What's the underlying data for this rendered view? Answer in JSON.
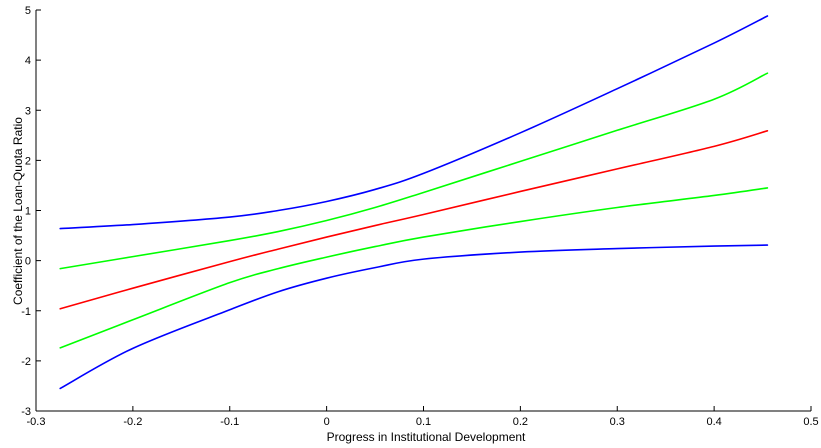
{
  "chart_data": {
    "type": "line",
    "title": "",
    "xlabel": "Progress in Institutional Development",
    "ylabel": "Coefficient of the Loan-Quota Ratio",
    "xlim": [
      -0.3,
      0.5
    ],
    "ylim": [
      -3,
      5
    ],
    "xticks": [
      "-0.3",
      "-0.2",
      "-0.1",
      "0",
      "0.1",
      "0.2",
      "0.3",
      "0.4",
      "0.5"
    ],
    "yticks": [
      "-3",
      "-2",
      "-1",
      "0",
      "1",
      "2",
      "3",
      "4",
      "5"
    ],
    "grid": false,
    "legend": "none",
    "x": [
      -0.275,
      -0.2,
      -0.1,
      -0.05,
      0,
      0.05,
      0.1,
      0.2,
      0.3,
      0.4,
      0.455
    ],
    "series": [
      {
        "color": "#0000ff",
        "values": [
          0.64,
          0.72,
          0.87,
          1.0,
          1.18,
          1.42,
          1.74,
          2.55,
          3.43,
          4.34,
          4.88
        ]
      },
      {
        "color": "#00ff00",
        "values": [
          -0.16,
          0.08,
          0.4,
          0.58,
          0.8,
          1.06,
          1.36,
          1.98,
          2.6,
          3.22,
          3.74
        ]
      },
      {
        "color": "#ff0000",
        "values": [
          -0.96,
          -0.55,
          -0.02,
          0.23,
          0.47,
          0.7,
          0.92,
          1.38,
          1.83,
          2.28,
          2.59
        ]
      },
      {
        "color": "#00ff00",
        "values": [
          -1.74,
          -1.18,
          -0.44,
          -0.16,
          0.07,
          0.28,
          0.47,
          0.78,
          1.06,
          1.3,
          1.45
        ]
      },
      {
        "color": "#0000ff",
        "values": [
          -2.55,
          -1.75,
          -0.98,
          -0.62,
          -0.35,
          -0.14,
          0.03,
          0.17,
          0.24,
          0.29,
          0.31
        ]
      }
    ]
  }
}
